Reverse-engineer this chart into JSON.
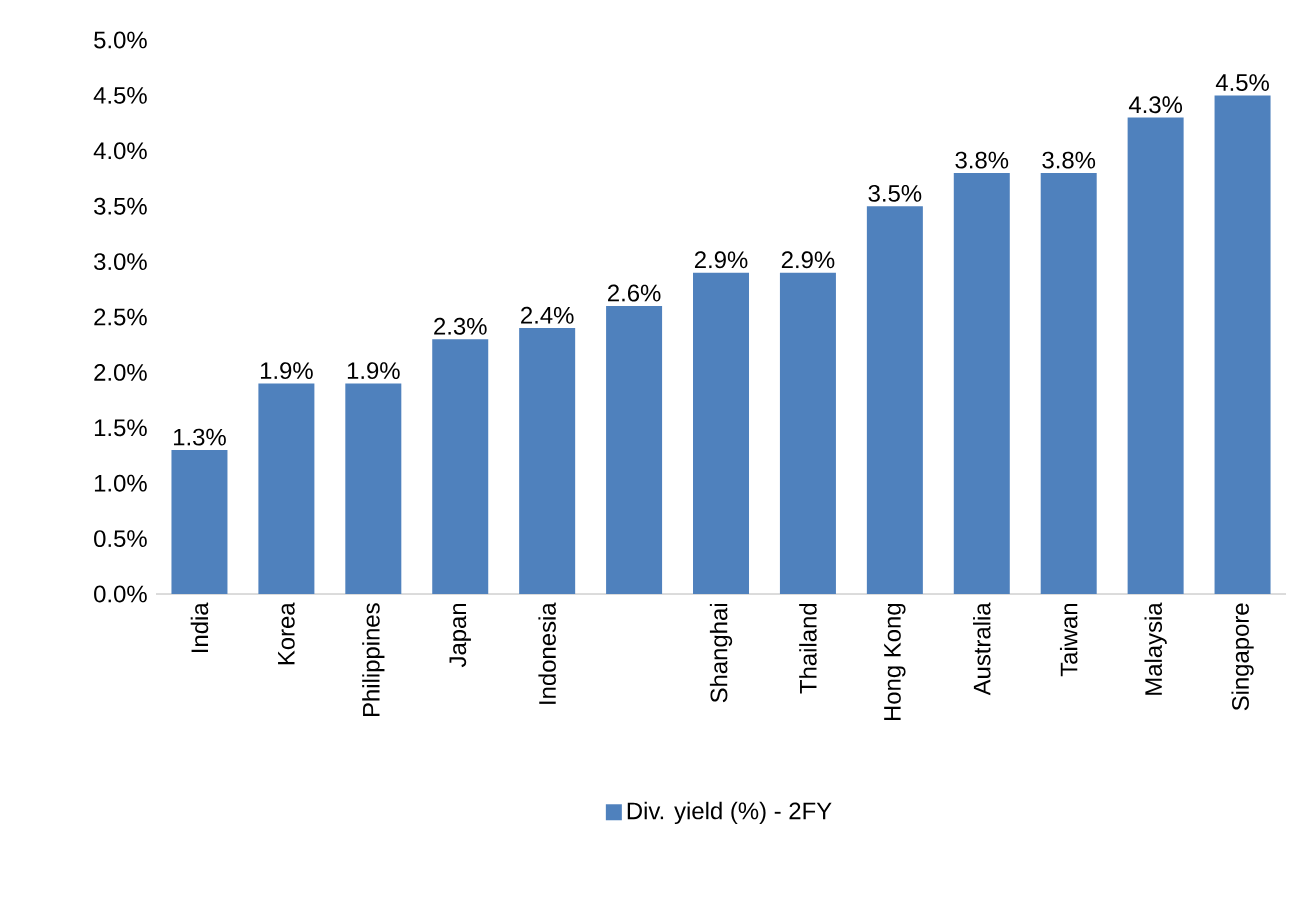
{
  "chart_data": {
    "type": "bar",
    "categories": [
      "India",
      "Korea",
      "Philippines",
      "Japan",
      "Indonesia",
      null,
      "Shanghai",
      "Thailand",
      "Hong Kong",
      "Australia",
      "Taiwan",
      "Malaysia",
      "Singapore"
    ],
    "series": [
      {
        "name": "Div. yield (%) - 2FY",
        "color": "#4f81bd",
        "values": [
          1.3,
          1.9,
          1.9,
          2.3,
          2.4,
          2.6,
          2.9,
          2.9,
          3.5,
          3.8,
          3.8,
          4.3,
          4.5
        ],
        "value_labels": [
          "1.3%",
          "1.9%",
          "1.9%",
          "2.3%",
          "2.4%",
          "2.6%",
          "2.9%",
          "2.9%",
          "3.5%",
          "3.8%",
          "3.8%",
          "4.3%",
          "4.5%"
        ]
      }
    ],
    "ylim": [
      0,
      5
    ],
    "yticks": [
      {
        "value": 0,
        "label": "0.0%"
      },
      {
        "value": 0.5,
        "label": "0.5%"
      },
      {
        "value": 1,
        "label": "1.0%"
      },
      {
        "value": 1.5,
        "label": "1.5%"
      },
      {
        "value": 2,
        "label": "2.0%"
      },
      {
        "value": 2.5,
        "label": "2.5%"
      },
      {
        "value": 3,
        "label": "3.0%"
      },
      {
        "value": 3.5,
        "label": "3.5%"
      },
      {
        "value": 4,
        "label": "4.0%"
      },
      {
        "value": 4.5,
        "label": "4.5%"
      },
      {
        "value": 5,
        "label": "5.0%"
      }
    ],
    "grid": false,
    "legend": "bottom"
  }
}
